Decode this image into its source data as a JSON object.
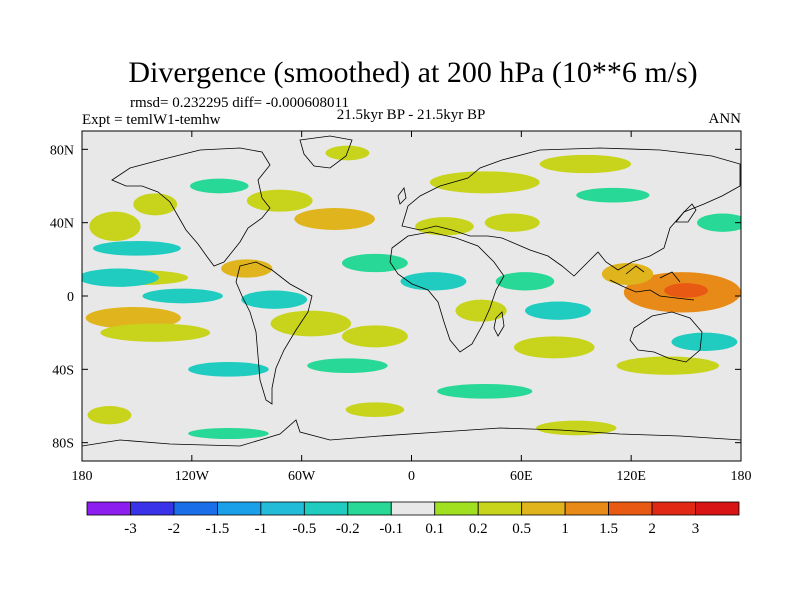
{
  "chart_data": {
    "type": "heatmap",
    "title": "Divergence (smoothed) at 200 hPa (10**6 m/s)",
    "stats_text": "rmsd= 0.232295 diff= -0.000608011",
    "period_text": "21.5kyr BP - 21.5kyr BP",
    "expt_text": "Expt = temlW1-temhw",
    "season": "ANN",
    "projection": "cylindrical equidistant with continental outlines",
    "lon_range": [
      -180,
      180
    ],
    "lat_range": [
      -90,
      90
    ],
    "x_ticks": [
      {
        "value": -180,
        "label": "180"
      },
      {
        "value": -120,
        "label": "120W"
      },
      {
        "value": -60,
        "label": "60W"
      },
      {
        "value": 0,
        "label": "0"
      },
      {
        "value": 60,
        "label": "60E"
      },
      {
        "value": 120,
        "label": "120E"
      },
      {
        "value": 180,
        "label": "180"
      }
    ],
    "y_ticks": [
      {
        "value": 80,
        "label": "80N"
      },
      {
        "value": 40,
        "label": "40N"
      },
      {
        "value": 0,
        "label": "0"
      },
      {
        "value": -40,
        "label": "40S"
      },
      {
        "value": -80,
        "label": "80S"
      }
    ],
    "colorbar": {
      "boundaries": [
        "-3",
        "-2",
        "-1.5",
        "-1",
        "-0.5",
        "-0.2",
        "-0.1",
        "0.1",
        "0.2",
        "0.5",
        "1",
        "1.5",
        "2",
        "3"
      ],
      "colors": [
        "#8c1ff0",
        "#3a32e8",
        "#1a6ee8",
        "#1aa0e8",
        "#22bcd8",
        "#20ccc0",
        "#28d896",
        "#e8e8e8",
        "#a0e020",
        "#c8d41c",
        "#e0b41c",
        "#e88a18",
        "#e85a14",
        "#e02814",
        "#d81414"
      ]
    },
    "regions": [
      {
        "name": "west-pacific-warm-pool",
        "lon": 148,
        "lat": 2,
        "rlon": 32,
        "rlat": 11,
        "value": 1.1
      },
      {
        "name": "west-pacific-core",
        "lon": 150,
        "lat": 3,
        "rlon": 12,
        "rlat": 4,
        "value": 1.6
      },
      {
        "name": "south-china-sea",
        "lon": 118,
        "lat": 12,
        "rlon": 14,
        "rlat": 6,
        "value": 0.6
      },
      {
        "name": "south-pacific-convergence",
        "lon": -152,
        "lat": -12,
        "rlon": 26,
        "rlat": 6,
        "value": 0.6
      },
      {
        "name": "south-pacific-band",
        "lon": -140,
        "lat": -20,
        "rlon": 30,
        "rlat": 5,
        "value": 0.3
      },
      {
        "name": "east-pacific-itcz",
        "lon": -148,
        "lat": 10,
        "rlon": 26,
        "rlat": 4,
        "value": 0.4
      },
      {
        "name": "central-america",
        "lon": -90,
        "lat": 15,
        "rlon": 14,
        "rlat": 5,
        "value": 0.5
      },
      {
        "name": "north-pacific-west",
        "lon": -162,
        "lat": 38,
        "rlon": 14,
        "rlat": 8,
        "value": 0.3
      },
      {
        "name": "north-america-west",
        "lon": -140,
        "lat": 50,
        "rlon": 12,
        "rlat": 6,
        "value": 0.3
      },
      {
        "name": "north-america-east",
        "lon": -72,
        "lat": 52,
        "rlon": 18,
        "rlat": 6,
        "value": 0.2
      },
      {
        "name": "north-atlantic",
        "lon": -42,
        "lat": 42,
        "rlon": 22,
        "rlat": 6,
        "value": 0.5
      },
      {
        "name": "europe-russia",
        "lon": 40,
        "lat": 62,
        "rlon": 30,
        "rlat": 6,
        "value": 0.3
      },
      {
        "name": "arctic-asia",
        "lon": 95,
        "lat": 72,
        "rlon": 25,
        "rlat": 5,
        "value": 0.2
      },
      {
        "name": "greenland",
        "lon": -35,
        "lat": 78,
        "rlon": 12,
        "rlat": 4,
        "value": 0.2
      },
      {
        "name": "mediterranean",
        "lon": 18,
        "lat": 38,
        "rlon": 16,
        "rlat": 5,
        "value": 0.3
      },
      {
        "name": "middle-east",
        "lon": 55,
        "lat": 40,
        "rlon": 15,
        "rlat": 5,
        "value": 0.3
      },
      {
        "name": "south-america",
        "lon": -55,
        "lat": -15,
        "rlon": 22,
        "rlat": 7,
        "value": 0.3
      },
      {
        "name": "south-atlantic",
        "lon": -20,
        "lat": -22,
        "rlon": 18,
        "rlat": 6,
        "value": 0.3
      },
      {
        "name": "east-africa",
        "lon": 38,
        "lat": -8,
        "rlon": 14,
        "rlat": 6,
        "value": 0.2
      },
      {
        "name": "indian-ocean-south",
        "lon": 78,
        "lat": -28,
        "rlon": 22,
        "rlat": 6,
        "value": 0.3
      },
      {
        "name": "australia-south",
        "lon": 140,
        "lat": -38,
        "rlon": 28,
        "rlat": 5,
        "value": 0.2
      },
      {
        "name": "southern-ocean-pacific",
        "lon": -165,
        "lat": -65,
        "rlon": 12,
        "rlat": 5,
        "value": 0.2
      },
      {
        "name": "southern-ocean-atlantic",
        "lon": -20,
        "lat": -62,
        "rlon": 16,
        "rlat": 4,
        "value": 0.2
      },
      {
        "name": "antarctic-coast",
        "lon": 90,
        "lat": -72,
        "rlon": 22,
        "rlat": 4,
        "value": 0.2
      },
      {
        "name": "north-pacific-trough",
        "lon": -160,
        "lat": 10,
        "rlon": 22,
        "rlat": 5,
        "value": -0.3
      },
      {
        "name": "east-pacific-trough",
        "lon": -125,
        "lat": 0,
        "rlon": 22,
        "rlat": 4,
        "value": -0.4
      },
      {
        "name": "caribbean-trough",
        "lon": -75,
        "lat": -2,
        "rlon": 18,
        "rlat": 5,
        "value": -0.5
      },
      {
        "name": "mid-pacific-band",
        "lon": -150,
        "lat": 26,
        "rlon": 24,
        "rlat": 4,
        "value": -0.3
      },
      {
        "name": "north-atlantic-trough",
        "lon": -20,
        "lat": 18,
        "rlon": 18,
        "rlat": 5,
        "value": -0.2
      },
      {
        "name": "africa-trough",
        "lon": 12,
        "lat": 8,
        "rlon": 18,
        "rlat": 5,
        "value": -0.3
      },
      {
        "name": "arabian-sea-trough",
        "lon": 62,
        "lat": 8,
        "rlon": 16,
        "rlat": 5,
        "value": -0.2
      },
      {
        "name": "indian-ocean-trough",
        "lon": 80,
        "lat": -8,
        "rlon": 18,
        "rlat": 5,
        "value": -0.5
      },
      {
        "name": "south-atlantic-trough",
        "lon": -35,
        "lat": -38,
        "rlon": 22,
        "rlat": 4,
        "value": -0.2
      },
      {
        "name": "south-pacific-trough",
        "lon": -100,
        "lat": -40,
        "rlon": 22,
        "rlat": 4,
        "value": -0.3
      },
      {
        "name": "tasman-trough",
        "lon": 160,
        "lat": -25,
        "rlon": 18,
        "rlat": 5,
        "value": -0.3
      },
      {
        "name": "southern-ocean-trough",
        "lon": 40,
        "lat": -52,
        "rlon": 26,
        "rlat": 4,
        "value": -0.2
      },
      {
        "name": "north-pacific-high",
        "lon": 170,
        "lat": 40,
        "rlon": 14,
        "rlat": 5,
        "value": -0.2
      },
      {
        "name": "siberia-trough",
        "lon": 110,
        "lat": 55,
        "rlon": 20,
        "rlat": 4,
        "value": -0.2
      },
      {
        "name": "north-america-trough",
        "lon": -105,
        "lat": 60,
        "rlon": 16,
        "rlat": 4,
        "value": -0.2
      },
      {
        "name": "antarctic-trough",
        "lon": -100,
        "lat": -75,
        "rlon": 22,
        "rlat": 3,
        "value": -0.2
      }
    ]
  }
}
